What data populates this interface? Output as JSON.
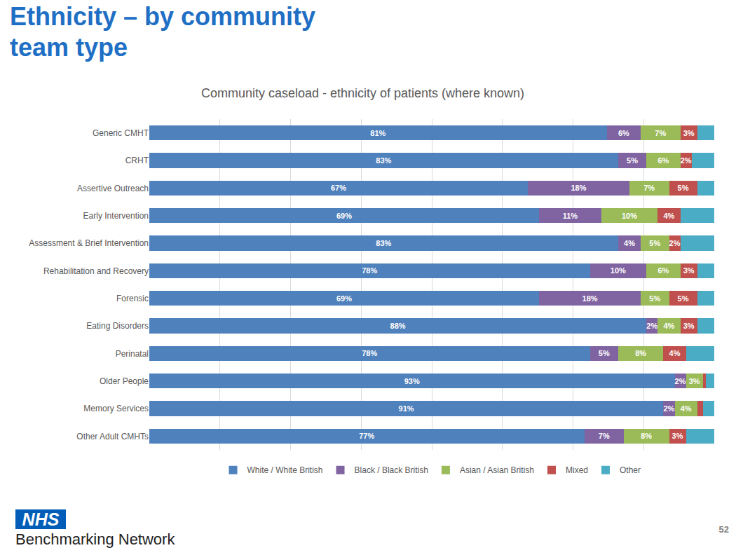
{
  "heading": "Ethnicity – by community team type",
  "footer": {
    "logo": "NHS",
    "text": "Benchmarking Network",
    "page": "52"
  },
  "chart_data": {
    "type": "bar",
    "orientation": "horizontal",
    "stacked": true,
    "title": "Community caseload - ethnicity of patients (where known)",
    "categories": [
      "Generic CMHT",
      "CRHT",
      "Assertive Outreach",
      "Early Intervention",
      "Assessment & Brief Intervention",
      "Rehabilitation and Recovery",
      "Forensic",
      "Eating Disorders",
      "Perinatal",
      "Older People",
      "Memory Services",
      "Other Adult CMHTs"
    ],
    "series": [
      {
        "name": "White / White British",
        "color": "#4f81bd",
        "values": [
          81,
          83,
          67,
          69,
          83,
          78,
          69,
          88,
          78,
          93,
          91,
          77
        ],
        "value_labels": [
          "81%",
          "83%",
          "67%",
          "69%",
          "83%",
          "78%",
          "69%",
          "88%",
          "78%",
          "93%",
          "91%",
          "77%"
        ]
      },
      {
        "name": "Black / Black British",
        "color": "#8064a2",
        "values": [
          6,
          5,
          18,
          11,
          4,
          10,
          18,
          2,
          5,
          2,
          2,
          7
        ],
        "value_labels": [
          "6%",
          "5%",
          "18%",
          "11%",
          "4%",
          "10%",
          "18%",
          "2%",
          "5%",
          "2%",
          "2%",
          "7%"
        ]
      },
      {
        "name": "Asian / Asian British",
        "color": "#9bbb59",
        "values": [
          7,
          6,
          7,
          10,
          5,
          6,
          5,
          4,
          8,
          3,
          4,
          8
        ],
        "value_labels": [
          "7%",
          "6%",
          "7%",
          "10%",
          "5%",
          "6%",
          "5%",
          "4%",
          "8%",
          "3%",
          "4%",
          "8%"
        ]
      },
      {
        "name": "Mixed",
        "color": "#c0504d",
        "values": [
          3,
          2,
          5,
          4,
          2,
          3,
          5,
          3,
          4,
          0.5,
          1,
          3
        ],
        "value_labels": [
          "3%",
          "2%",
          "5%",
          "4%",
          "2%",
          "3%",
          "5%",
          "3%",
          "4%",
          null,
          null,
          "3%"
        ]
      },
      {
        "name": "Other",
        "color": "#4bacc6",
        "values": [
          3,
          4,
          3,
          6,
          6,
          3,
          3,
          3,
          5,
          1.5,
          2,
          5
        ]
      }
    ],
    "xlim": [
      0,
      100
    ],
    "xticks": [
      0,
      12.5,
      25,
      37.5,
      50,
      62.5,
      75,
      87.5,
      100
    ],
    "grid": true,
    "tick_labels": "y",
    "data_labels": true,
    "legend": "bottom"
  }
}
